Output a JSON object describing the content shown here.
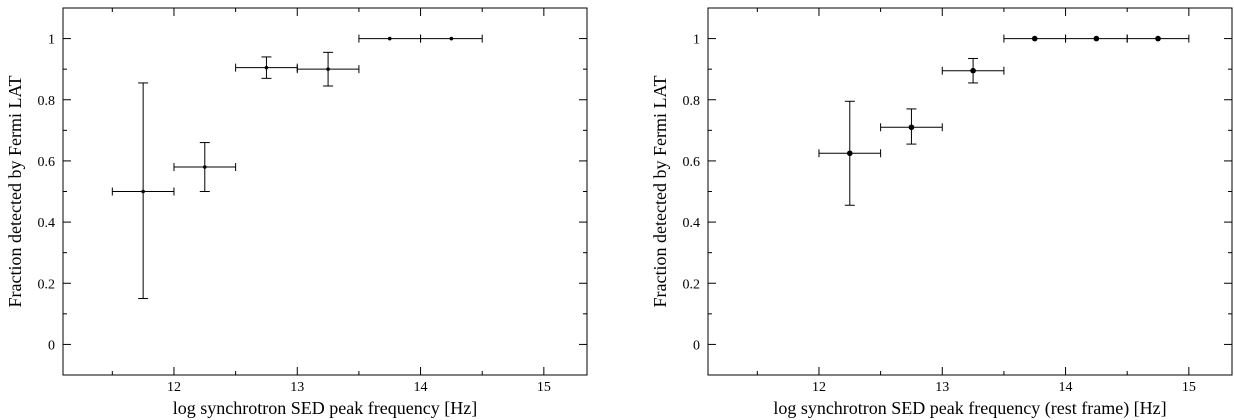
{
  "chart_data": [
    {
      "type": "scatter",
      "title": "",
      "xlabel": "log synchrotron SED peak frequency [Hz]",
      "ylabel": "Fraction detected by Fermi LAT",
      "xlim": [
        11.1,
        15.35
      ],
      "ylim": [
        -0.1,
        1.1
      ],
      "xticks": [
        12,
        13,
        14,
        15
      ],
      "yticks": [
        0,
        0.2,
        0.4,
        0.6,
        0.8,
        1
      ],
      "xtick_labels": [
        "12",
        "13",
        "14",
        "15"
      ],
      "ytick_labels": [
        "0",
        "0.2",
        "0.4",
        "0.6",
        "0.8",
        "1"
      ],
      "grid": false,
      "points": [
        {
          "x": 11.75,
          "y": 0.5,
          "xerr": 0.25,
          "ylo": 0.15,
          "yhi": 0.855
        },
        {
          "x": 12.25,
          "y": 0.58,
          "xerr": 0.25,
          "ylo": 0.5,
          "yhi": 0.66
        },
        {
          "x": 12.75,
          "y": 0.905,
          "xerr": 0.25,
          "ylo": 0.87,
          "yhi": 0.94
        },
        {
          "x": 13.25,
          "y": 0.9,
          "xerr": 0.25,
          "ylo": 0.845,
          "yhi": 0.955
        },
        {
          "x": 13.75,
          "y": 1.0,
          "xerr": 0.25,
          "ylo": 1.0,
          "yhi": 1.0
        },
        {
          "x": 14.25,
          "y": 1.0,
          "xerr": 0.25,
          "ylo": 1.0,
          "yhi": 1.0
        }
      ]
    },
    {
      "type": "scatter",
      "title": "",
      "xlabel": "log synchrotron SED peak frequency (rest frame) [Hz]",
      "ylabel": "Fraction detected by Fermi LAT",
      "xlim": [
        11.1,
        15.35
      ],
      "ylim": [
        -0.1,
        1.1
      ],
      "xticks": [
        12,
        13,
        14,
        15
      ],
      "yticks": [
        0,
        0.2,
        0.4,
        0.6,
        0.8,
        1
      ],
      "xtick_labels": [
        "12",
        "13",
        "14",
        "15"
      ],
      "ytick_labels": [
        "0",
        "0.2",
        "0.4",
        "0.6",
        "0.8",
        "1"
      ],
      "grid": false,
      "points": [
        {
          "x": 12.25,
          "y": 0.625,
          "xerr": 0.25,
          "ylo": 0.455,
          "yhi": 0.795
        },
        {
          "x": 12.75,
          "y": 0.71,
          "xerr": 0.25,
          "ylo": 0.655,
          "yhi": 0.77
        },
        {
          "x": 13.25,
          "y": 0.895,
          "xerr": 0.25,
          "ylo": 0.855,
          "yhi": 0.935
        },
        {
          "x": 13.75,
          "y": 1.0,
          "xerr": 0.25,
          "ylo": 1.0,
          "yhi": 1.0
        },
        {
          "x": 14.25,
          "y": 1.0,
          "xerr": 0.25,
          "ylo": 1.0,
          "yhi": 1.0
        },
        {
          "x": 14.75,
          "y": 1.0,
          "xerr": 0.25,
          "ylo": 1.0,
          "yhi": 1.0
        }
      ]
    }
  ]
}
